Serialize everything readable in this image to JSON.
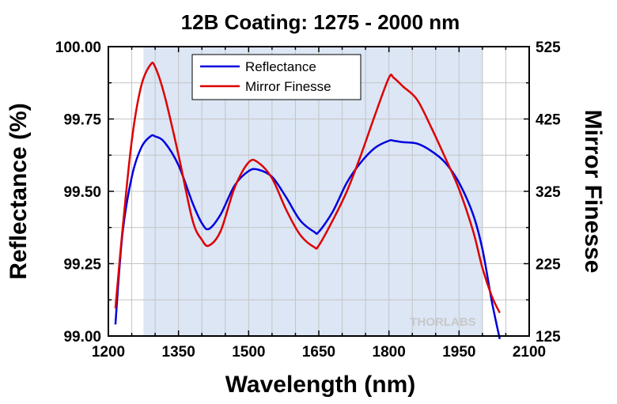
{
  "chart_data": {
    "type": "line",
    "title": "12B Coating: 1275 - 2000 nm",
    "xlabel": "Wavelength (nm)",
    "ylabel": "Reflectance (%)",
    "y2label": "Mirror Finesse",
    "xlim": [
      1200,
      2100
    ],
    "ylim": [
      99.0,
      100.0
    ],
    "y2lim": [
      125,
      525
    ],
    "xticks": [
      "1200",
      "1350",
      "1500",
      "1650",
      "1800",
      "1950",
      "2100"
    ],
    "yticks": [
      "99.00",
      "99.25",
      "99.50",
      "99.75",
      "100.00"
    ],
    "y2ticks": [
      "125",
      "225",
      "325",
      "425",
      "525"
    ],
    "grid": true,
    "shaded_region": [
      1275,
      2000
    ],
    "legend_position": "top-center",
    "watermark": "THORLABS",
    "series": [
      {
        "name": "Reflectance",
        "color": "#0000dd",
        "axis": "left",
        "x": [
          1215,
          1230,
          1250,
          1270,
          1290,
          1300,
          1320,
          1350,
          1380,
          1400,
          1415,
          1440,
          1470,
          1500,
          1520,
          1550,
          1580,
          1610,
          1640,
          1650,
          1680,
          1710,
          1740,
          1770,
          1800,
          1810,
          1830,
          1860,
          1890,
          1920,
          1950,
          1980,
          2000,
          2020,
          2037
        ],
        "values": [
          99.04,
          99.35,
          99.55,
          99.65,
          99.69,
          99.69,
          99.67,
          99.59,
          99.46,
          99.39,
          99.37,
          99.42,
          99.52,
          99.57,
          99.575,
          99.55,
          99.48,
          99.4,
          99.36,
          99.36,
          99.43,
          99.53,
          99.6,
          99.65,
          99.675,
          99.675,
          99.67,
          99.665,
          99.64,
          99.6,
          99.53,
          99.42,
          99.3,
          99.12,
          98.99
        ]
      },
      {
        "name": "Mirror Finesse",
        "color": "#dd0000",
        "axis": "right",
        "x": [
          1215,
          1230,
          1250,
          1270,
          1290,
          1300,
          1320,
          1350,
          1380,
          1400,
          1415,
          1440,
          1470,
          1500,
          1520,
          1550,
          1580,
          1610,
          1640,
          1650,
          1680,
          1710,
          1740,
          1770,
          1800,
          1810,
          1830,
          1860,
          1890,
          1920,
          1950,
          1980,
          2000,
          2020,
          2037
        ],
        "values": [
          163,
          270,
          395,
          470,
          500,
          497,
          458,
          375,
          285,
          258,
          250,
          270,
          330,
          365,
          365,
          343,
          300,
          265,
          248,
          250,
          285,
          325,
          375,
          430,
          482,
          482,
          470,
          452,
          414,
          372,
          328,
          270,
          219,
          180,
          157
        ]
      }
    ]
  }
}
